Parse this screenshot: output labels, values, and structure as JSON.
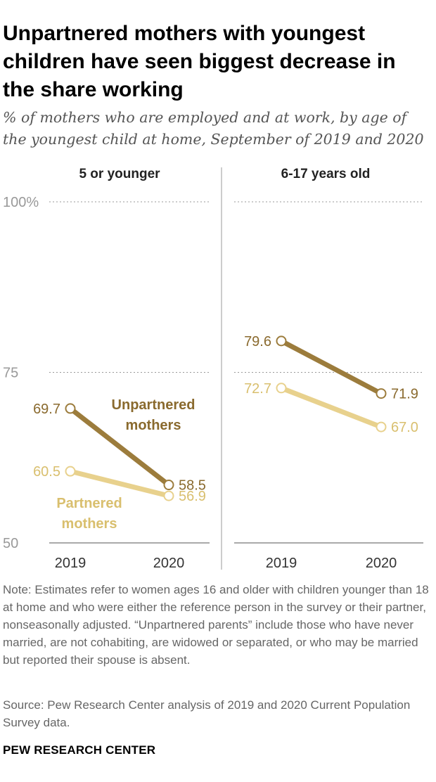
{
  "title": "Unpartnered mothers with youngest children have seen biggest decrease in the share working",
  "subtitle": "% of mothers who are employed and at work, by age of the youngest child at home, September of 2019 and 2020",
  "colors": {
    "unpartnered": "#9c7c3c",
    "partnered": "#e8d18d",
    "unpartnered_text": "#8a6a2e",
    "partnered_text": "#d9bf6e"
  },
  "chart_data": {
    "type": "line",
    "ylim": [
      50,
      100
    ],
    "y_ticks": [
      {
        "value": 100,
        "label": "100%"
      },
      {
        "value": 75,
        "label": "75"
      },
      {
        "value": 50,
        "label": "50"
      }
    ],
    "x": [
      "2019",
      "2020"
    ],
    "panels": [
      {
        "title": "5 or younger",
        "series": [
          {
            "name": "Unpartnered mothers",
            "key": "unpartnered",
            "values": [
              69.7,
              58.5
            ],
            "labels": [
              "69.7",
              "58.5"
            ]
          },
          {
            "name": "Partnered mothers",
            "key": "partnered",
            "values": [
              60.5,
              56.9
            ],
            "labels": [
              "60.5",
              "56.9"
            ]
          }
        ],
        "annotations": [
          {
            "series": "unpartnered",
            "lines": [
              "Unpartnered",
              "mothers"
            ]
          },
          {
            "series": "partnered",
            "lines": [
              "Partnered",
              "mothers"
            ]
          }
        ]
      },
      {
        "title": "6-17 years old",
        "series": [
          {
            "name": "Unpartnered mothers",
            "key": "unpartnered",
            "values": [
              79.6,
              71.9
            ],
            "labels": [
              "79.6",
              "71.9"
            ]
          },
          {
            "name": "Partnered mothers",
            "key": "partnered",
            "values": [
              72.7,
              67.0
            ],
            "labels": [
              "72.7",
              "67.0"
            ]
          }
        ]
      }
    ]
  },
  "note": "Note: Estimates refer to women ages 16 and older with children younger than 18 at home and who were either the reference person in the survey or their partner, nonseasonally adjusted. “Unpartnered parents” include those who have never married, are not cohabiting, are widowed or separated, or who may be married but reported their spouse is absent.",
  "source": "Source: Pew Research Center analysis of 2019 and 2020 Current Population Survey data.",
  "brand": "PEW RESEARCH CENTER"
}
